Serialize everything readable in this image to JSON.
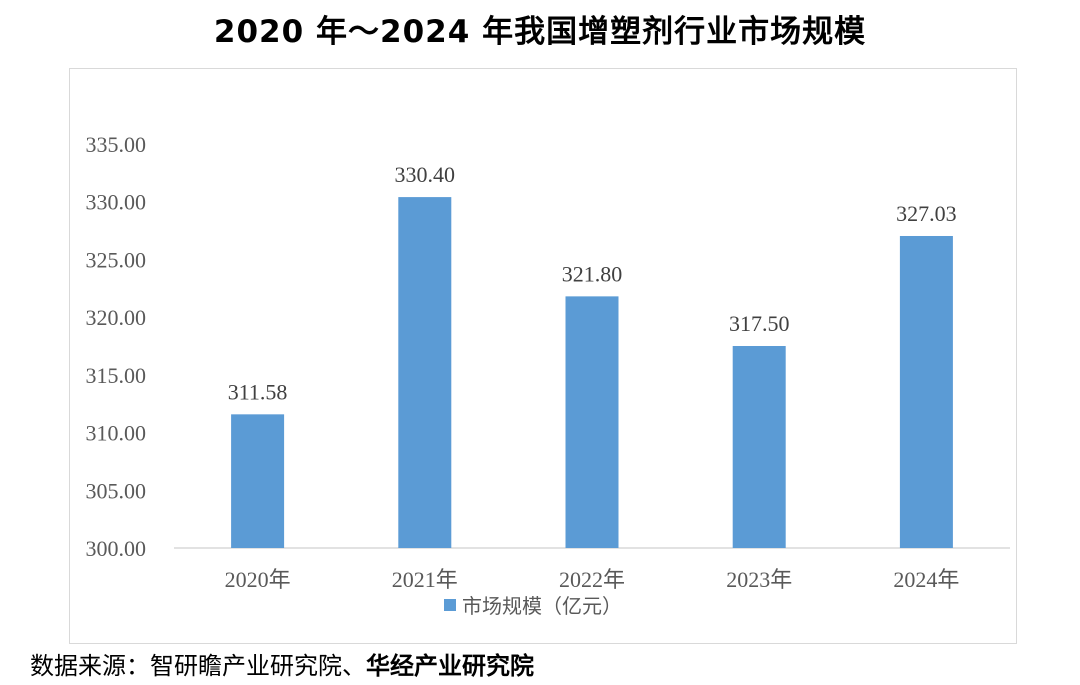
{
  "title": "2020 年～2024 年我国增塑剂行业市场规模",
  "source": {
    "prefix": "数据来源：智研瞻产业研究院、",
    "bold": "华经产业研究院"
  },
  "colors": {
    "bar": "#5b9bd5",
    "axis_text": "#595959",
    "label_text": "#404040",
    "axis_line": "#d9d9d9"
  },
  "chart_data": {
    "type": "bar",
    "title": "2020 年～2024 年我国增塑剂行业市场规模",
    "categories": [
      "2020年",
      "2021年",
      "2022年",
      "2023年",
      "2024年"
    ],
    "series": [
      {
        "name": "市场规模（亿元）",
        "values": [
          311.58,
          330.4,
          321.8,
          317.5,
          327.03
        ],
        "labels": [
          "311.58",
          "330.40",
          "321.80",
          "317.50",
          "327.03"
        ]
      }
    ],
    "ylim": [
      300,
      335
    ],
    "yticks": [
      "300.00",
      "305.00",
      "310.00",
      "315.00",
      "320.00",
      "325.00",
      "330.00",
      "335.00"
    ],
    "ytick_values": [
      300,
      305,
      310,
      315,
      320,
      325,
      330,
      335
    ],
    "grid": false,
    "legend": "bottom-center",
    "xlabel": "",
    "ylabel": ""
  }
}
